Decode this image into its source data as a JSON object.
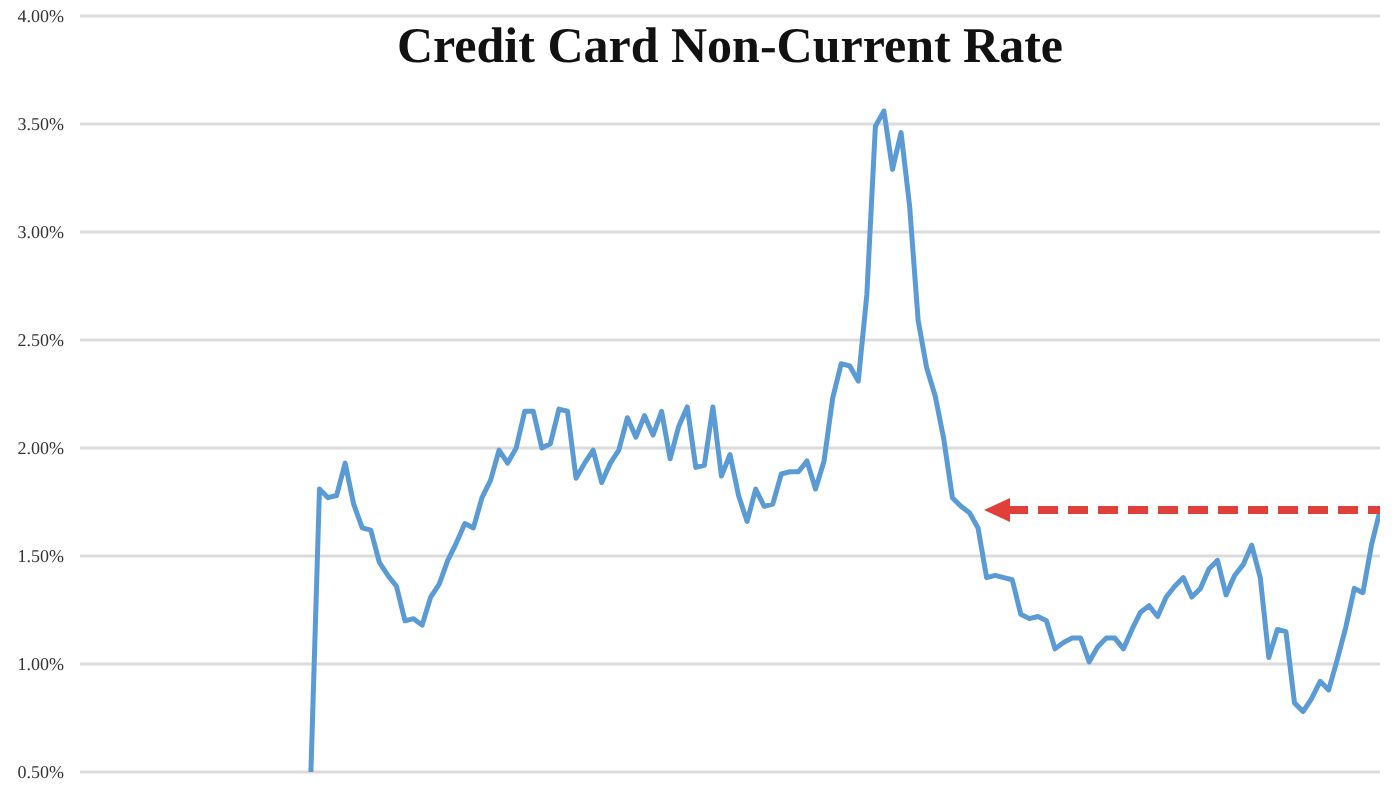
{
  "chart_data": {
    "type": "line",
    "title": "Credit Card Non-Current Rate",
    "categories": [
      null,
      null,
      null,
      null,
      null,
      null,
      null,
      null,
      null,
      null,
      null,
      null,
      null,
      null,
      null,
      null,
      null,
      null,
      null,
      null,
      null,
      null,
      null,
      null,
      null,
      null,
      null,
      null,
      null,
      null,
      null,
      null,
      null,
      null,
      null,
      null,
      null,
      null,
      null,
      null,
      null,
      null,
      null,
      null,
      null,
      null,
      null,
      null,
      null,
      null,
      null,
      null,
      null,
      null,
      null,
      null,
      null,
      null,
      null,
      null,
      null,
      null,
      null,
      null,
      null,
      null,
      null,
      null,
      null,
      null,
      null,
      null,
      null,
      null,
      null,
      null,
      null,
      null,
      null,
      null,
      null,
      null,
      null,
      null,
      null,
      null,
      null,
      null,
      null,
      null,
      null,
      null,
      null,
      null,
      null,
      null,
      null,
      null,
      null,
      null,
      null,
      null,
      null,
      null,
      null,
      null,
      null,
      null,
      null,
      null,
      null,
      null,
      null,
      null,
      null,
      null,
      null,
      null,
      null,
      null,
      null,
      null,
      null,
      null,
      null,
      null,
      null,
      null,
      null,
      null,
      null,
      null,
      null,
      null,
      null,
      null,
      null,
      null,
      null,
      null,
      null,
      null,
      null,
      null,
      null,
      null,
      null,
      null,
      null,
      null,
      null,
      null,
      null
    ],
    "series": [
      {
        "color": "#5b9bd5",
        "values": [
          null,
          null,
          null,
          null,
          null,
          null,
          null,
          null,
          null,
          null,
          null,
          null,
          null,
          null,
          null,
          null,
          null,
          null,
          null,
          null,
          null,
          null,
          null,
          null,
          null,
          null,
          null,
          0.5,
          1.81,
          1.77,
          1.78,
          1.93,
          1.74,
          1.63,
          1.62,
          1.47,
          1.41,
          1.36,
          1.2,
          1.21,
          1.18,
          1.31,
          1.37,
          1.48,
          1.56,
          1.65,
          1.63,
          1.77,
          1.85,
          1.99,
          1.93,
          2.0,
          2.17,
          2.17,
          2.0,
          2.02,
          2.18,
          2.17,
          1.86,
          1.93,
          1.99,
          1.84,
          1.93,
          1.99,
          2.14,
          2.05,
          2.15,
          2.06,
          2.17,
          1.95,
          2.1,
          2.19,
          1.91,
          1.92,
          2.19,
          1.87,
          1.97,
          1.78,
          1.66,
          1.81,
          1.73,
          1.74,
          1.88,
          1.89,
          1.89,
          1.94,
          1.81,
          1.94,
          2.23,
          2.39,
          2.38,
          2.31,
          2.71,
          3.49,
          3.56,
          3.29,
          3.46,
          3.12,
          2.59,
          2.37,
          2.24,
          2.04,
          1.77,
          1.73,
          1.7,
          1.63,
          1.4,
          1.41,
          1.4,
          1.39,
          1.23,
          1.21,
          1.22,
          1.2,
          1.07,
          1.1,
          1.12,
          1.12,
          1.01,
          1.08,
          1.12,
          1.12,
          1.07,
          1.16,
          1.24,
          1.27,
          1.22,
          1.31,
          1.36,
          1.4,
          1.31,
          1.35,
          1.44,
          1.48,
          1.32,
          1.41,
          1.46,
          1.55,
          1.4,
          1.03,
          1.16,
          1.15,
          0.82,
          0.78,
          0.84,
          0.92,
          0.88,
          1.02,
          1.17,
          1.35,
          1.33,
          1.55,
          1.71
        ]
      }
    ],
    "ylim": [
      0.5,
      4.0
    ],
    "yticks": [
      {
        "value": 0.5,
        "label": "0.50%"
      },
      {
        "value": 1.0,
        "label": "1.00%"
      },
      {
        "value": 1.5,
        "label": "1.50%"
      },
      {
        "value": 2.0,
        "label": "2.00%"
      },
      {
        "value": 2.5,
        "label": "2.50%"
      },
      {
        "value": 3.0,
        "label": "3.00%"
      },
      {
        "value": 3.5,
        "label": "3.50%"
      },
      {
        "value": 4.0,
        "label": "4.00%"
      }
    ],
    "grid": "y",
    "tick_labels": "y",
    "marker": "none",
    "line_style": "solid",
    "legend": false
  }
}
